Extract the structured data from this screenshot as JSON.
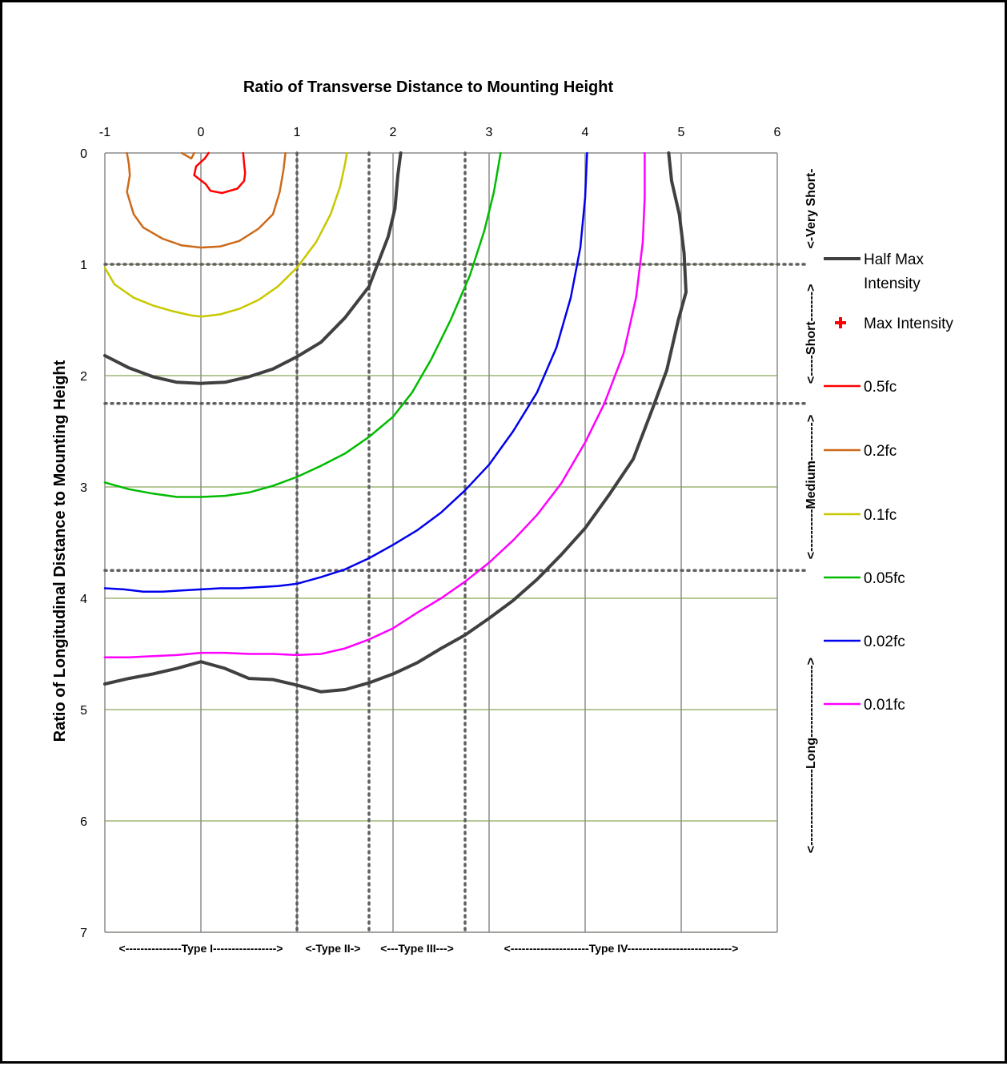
{
  "chart_data": {
    "type": "line",
    "title": "Ratio of Transverse Distance to Mounting Height",
    "xlabel": "Ratio of Transverse Distance to Mounting Height",
    "ylabel": "Ratio of Longitudinal Distance to Mounting Height",
    "xlim": [
      -1,
      6
    ],
    "ylim": [
      7,
      0
    ],
    "x_ticks": [
      "-1",
      "0",
      "1",
      "2",
      "3",
      "4",
      "5",
      "6"
    ],
    "y_ticks": [
      "0",
      "1",
      "2",
      "3",
      "4",
      "5",
      "6",
      "7"
    ],
    "grid": true,
    "x_axis_position": "top",
    "legend_position": "right",
    "classification_lines": {
      "x": [
        1,
        1.75,
        2.75
      ],
      "y": [
        1,
        2.25,
        3.75
      ]
    },
    "side_labels": [
      "<------------------Long----------------->",
      "<----------Medium--------->",
      "<-----Short------->",
      "<-Very Short-"
    ],
    "type_labels": [
      "<---------------Type I----------------->",
      "<-Type II->",
      "<---Type III--->",
      "<---------------------Type IV---------------------------->"
    ],
    "legend": [
      {
        "label": "Half Max Intensity",
        "color": "#404040",
        "marker": "line"
      },
      {
        "label": "Max Intensity",
        "color": "#ff0000",
        "marker": "plus"
      },
      {
        "label": "0.5fc",
        "color": "#ff0000",
        "marker": "line"
      },
      {
        "label": "0.2fc",
        "color": "#cc6a1a",
        "marker": "line"
      },
      {
        "label": "0.1fc",
        "color": "#c8c800",
        "marker": "line"
      },
      {
        "label": "0.05fc",
        "color": "#00bb00",
        "marker": "line"
      },
      {
        "label": "0.02fc",
        "color": "#0000ee",
        "marker": "line"
      },
      {
        "label": "0.01fc",
        "color": "#ff00ff",
        "marker": "line"
      }
    ],
    "series": [
      {
        "name": "0.5fc",
        "color": "#ff0000",
        "width": 2.5,
        "points": [
          [
            0.44,
            0
          ],
          [
            0.45,
            0.1
          ],
          [
            0.46,
            0.18
          ],
          [
            0.45,
            0.25
          ],
          [
            0.38,
            0.32
          ],
          [
            0.22,
            0.36
          ],
          [
            0.1,
            0.34
          ],
          [
            0.05,
            0.28
          ],
          [
            -0.07,
            0.2
          ],
          [
            -0.05,
            0.12
          ],
          [
            0.04,
            0.05
          ],
          [
            0.08,
            0
          ]
        ]
      },
      {
        "name": "0.2fc",
        "color": "#cc6a1a",
        "width": 2.5,
        "points": [
          [
            -0.77,
            0
          ],
          [
            -0.75,
            0.1
          ],
          [
            -0.74,
            0.2
          ],
          [
            -0.77,
            0.35
          ],
          [
            -0.7,
            0.55
          ],
          [
            -0.6,
            0.67
          ],
          [
            -0.4,
            0.77
          ],
          [
            -0.2,
            0.83
          ],
          [
            0,
            0.85
          ],
          [
            0.2,
            0.84
          ],
          [
            0.4,
            0.79
          ],
          [
            0.6,
            0.68
          ],
          [
            0.75,
            0.55
          ],
          [
            0.82,
            0.35
          ],
          [
            0.86,
            0.15
          ],
          [
            0.88,
            0
          ]
        ]
      },
      {
        "name": "0.2fc-small",
        "color": "#cc6a1a",
        "width": 2.5,
        "points": [
          [
            -0.2,
            0.0
          ],
          [
            -0.1,
            0.05
          ],
          [
            -0.07,
            0.0
          ]
        ]
      },
      {
        "name": "0.1fc",
        "color": "#c8c800",
        "width": 2.5,
        "points": [
          [
            -1,
            1.03
          ],
          [
            -0.9,
            1.18
          ],
          [
            -0.7,
            1.3
          ],
          [
            -0.5,
            1.37
          ],
          [
            -0.3,
            1.42
          ],
          [
            -0.1,
            1.46
          ],
          [
            0,
            1.47
          ],
          [
            0.2,
            1.45
          ],
          [
            0.4,
            1.4
          ],
          [
            0.6,
            1.32
          ],
          [
            0.8,
            1.2
          ],
          [
            1,
            1.03
          ],
          [
            1.2,
            0.8
          ],
          [
            1.35,
            0.55
          ],
          [
            1.45,
            0.3
          ],
          [
            1.5,
            0.1
          ],
          [
            1.52,
            0
          ]
        ]
      },
      {
        "name": "Half Max Intensity",
        "color": "#404040",
        "width": 4,
        "points": [
          [
            -1,
            1.82
          ],
          [
            -0.75,
            1.93
          ],
          [
            -0.5,
            2.01
          ],
          [
            -0.25,
            2.06
          ],
          [
            0,
            2.07
          ],
          [
            0.25,
            2.06
          ],
          [
            0.5,
            2.01
          ],
          [
            0.75,
            1.94
          ],
          [
            1,
            1.83
          ],
          [
            1.25,
            1.7
          ],
          [
            1.5,
            1.48
          ],
          [
            1.75,
            1.2
          ],
          [
            1.95,
            0.75
          ],
          [
            2.02,
            0.5
          ],
          [
            2.05,
            0.2
          ],
          [
            2.08,
            0
          ]
        ]
      },
      {
        "name": "0.05fc",
        "color": "#00bb00",
        "width": 2.5,
        "points": [
          [
            -1,
            2.96
          ],
          [
            -0.75,
            3.02
          ],
          [
            -0.5,
            3.06
          ],
          [
            -0.25,
            3.09
          ],
          [
            0,
            3.09
          ],
          [
            0.25,
            3.08
          ],
          [
            0.5,
            3.05
          ],
          [
            0.75,
            2.99
          ],
          [
            1,
            2.91
          ],
          [
            1.25,
            2.81
          ],
          [
            1.5,
            2.7
          ],
          [
            1.75,
            2.55
          ],
          [
            2,
            2.37
          ],
          [
            2.2,
            2.15
          ],
          [
            2.4,
            1.85
          ],
          [
            2.6,
            1.5
          ],
          [
            2.8,
            1.1
          ],
          [
            2.95,
            0.7
          ],
          [
            3.05,
            0.35
          ],
          [
            3.1,
            0.1
          ],
          [
            3.12,
            0
          ]
        ]
      },
      {
        "name": "0.02fc",
        "color": "#0000ee",
        "width": 2.5,
        "points": [
          [
            -1,
            3.91
          ],
          [
            -0.8,
            3.92
          ],
          [
            -0.6,
            3.94
          ],
          [
            -0.4,
            3.94
          ],
          [
            -0.2,
            3.93
          ],
          [
            0,
            3.92
          ],
          [
            0.2,
            3.91
          ],
          [
            0.4,
            3.91
          ],
          [
            0.6,
            3.9
          ],
          [
            0.8,
            3.89
          ],
          [
            1,
            3.87
          ],
          [
            1.25,
            3.81
          ],
          [
            1.5,
            3.74
          ],
          [
            1.75,
            3.64
          ],
          [
            2,
            3.52
          ],
          [
            2.25,
            3.39
          ],
          [
            2.5,
            3.23
          ],
          [
            2.75,
            3.03
          ],
          [
            3,
            2.8
          ],
          [
            3.25,
            2.5
          ],
          [
            3.5,
            2.15
          ],
          [
            3.7,
            1.75
          ],
          [
            3.85,
            1.3
          ],
          [
            3.95,
            0.85
          ],
          [
            4.0,
            0.4
          ],
          [
            4.02,
            0
          ]
        ]
      },
      {
        "name": "0.01fc",
        "color": "#ff00ff",
        "width": 2.5,
        "points": [
          [
            -1,
            4.53
          ],
          [
            -0.75,
            4.53
          ],
          [
            -0.5,
            4.52
          ],
          [
            -0.25,
            4.51
          ],
          [
            0,
            4.49
          ],
          [
            0.25,
            4.49
          ],
          [
            0.5,
            4.5
          ],
          [
            0.75,
            4.5
          ],
          [
            1,
            4.51
          ],
          [
            1.25,
            4.5
          ],
          [
            1.5,
            4.45
          ],
          [
            1.75,
            4.37
          ],
          [
            2,
            4.27
          ],
          [
            2.25,
            4.13
          ],
          [
            2.5,
            4.0
          ],
          [
            2.75,
            3.85
          ],
          [
            3,
            3.68
          ],
          [
            3.25,
            3.48
          ],
          [
            3.5,
            3.25
          ],
          [
            3.75,
            2.97
          ],
          [
            4,
            2.6
          ],
          [
            4.2,
            2.25
          ],
          [
            4.4,
            1.8
          ],
          [
            4.53,
            1.3
          ],
          [
            4.6,
            0.8
          ],
          [
            4.62,
            0.4
          ],
          [
            4.62,
            0
          ]
        ]
      },
      {
        "name": "Half Max Intensity (outer)",
        "color": "#404040",
        "width": 4,
        "points": [
          [
            -1,
            4.77
          ],
          [
            -0.75,
            4.72
          ],
          [
            -0.5,
            4.68
          ],
          [
            -0.25,
            4.63
          ],
          [
            0,
            4.57
          ],
          [
            0.25,
            4.63
          ],
          [
            0.5,
            4.72
          ],
          [
            0.75,
            4.73
          ],
          [
            1,
            4.78
          ],
          [
            1.25,
            4.84
          ],
          [
            1.5,
            4.82
          ],
          [
            1.75,
            4.76
          ],
          [
            2,
            4.68
          ],
          [
            2.25,
            4.58
          ],
          [
            2.5,
            4.45
          ],
          [
            2.75,
            4.33
          ],
          [
            3,
            4.18
          ],
          [
            3.25,
            4.02
          ],
          [
            3.5,
            3.83
          ],
          [
            3.75,
            3.61
          ],
          [
            4,
            3.37
          ],
          [
            4.25,
            3.07
          ],
          [
            4.5,
            2.75
          ],
          [
            4.7,
            2.3
          ],
          [
            4.85,
            1.95
          ],
          [
            4.97,
            1.5
          ],
          [
            5.05,
            1.25
          ],
          [
            5.03,
            0.9
          ],
          [
            4.98,
            0.55
          ],
          [
            4.9,
            0.25
          ],
          [
            4.87,
            0
          ]
        ]
      }
    ]
  }
}
